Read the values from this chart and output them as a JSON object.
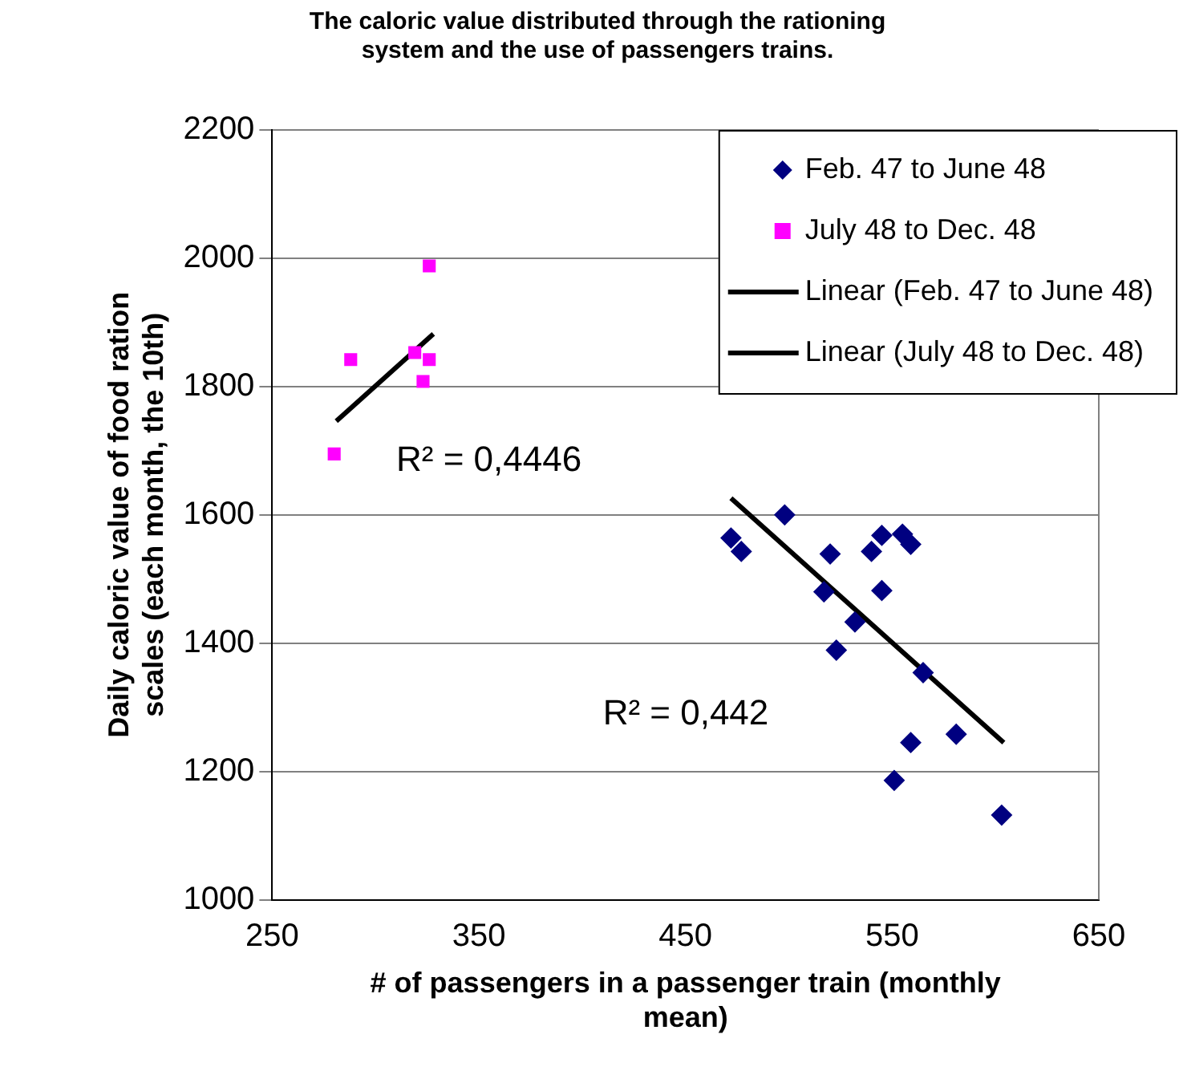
{
  "chart_data": {
    "type": "scatter",
    "title": [
      "The caloric value distributed through the rationing",
      "system and the use of passengers trains."
    ],
    "xlabel": [
      "# of passengers in a passenger train (monthly",
      "mean)"
    ],
    "ylabel": [
      "Daily caloric value of food ration",
      "scales (each month, the 10th)"
    ],
    "xlim": [
      250,
      650
    ],
    "xticks": [
      250,
      350,
      450,
      550,
      650
    ],
    "ylim": [
      1000,
      2200
    ],
    "yticks": [
      1000,
      1200,
      1400,
      1600,
      1800,
      2000,
      2200
    ],
    "grid": "y",
    "legend": "top right",
    "series": [
      {
        "name": "Feb. 47 to June 48",
        "color": "#000080",
        "marker": "diamond",
        "x": [
          498,
          472,
          477,
          520,
          540,
          545,
          555,
          559,
          517,
          545,
          532,
          523,
          565,
          581,
          559,
          551,
          603
        ],
        "values": [
          1600,
          1564,
          1543,
          1539,
          1543,
          1568,
          1570,
          1554,
          1480,
          1482,
          1433,
          1389,
          1354,
          1258,
          1245,
          1186,
          1132
        ]
      },
      {
        "name": "July 48 to Dec. 48",
        "color": "#ff00ff",
        "marker": "square",
        "x": [
          326,
          288,
          319,
          326,
          323,
          280
        ],
        "values": [
          1988,
          1842,
          1853,
          1842,
          1808,
          1695
        ]
      },
      {
        "name": "Linear (Feb. 47 to June 48)",
        "type": "line",
        "color": "#000000",
        "marker": "none",
        "x": [
          472,
          604
        ],
        "values": [
          1626,
          1245
        ]
      },
      {
        "name": "Linear (July 48 to Dec. 48)",
        "type": "line",
        "color": "#000000",
        "marker": "none",
        "x": [
          281,
          328
        ],
        "values": [
          1746,
          1882
        ]
      }
    ],
    "annotations": [
      "R² = 0,4446",
      "R² = 0,442"
    ]
  }
}
